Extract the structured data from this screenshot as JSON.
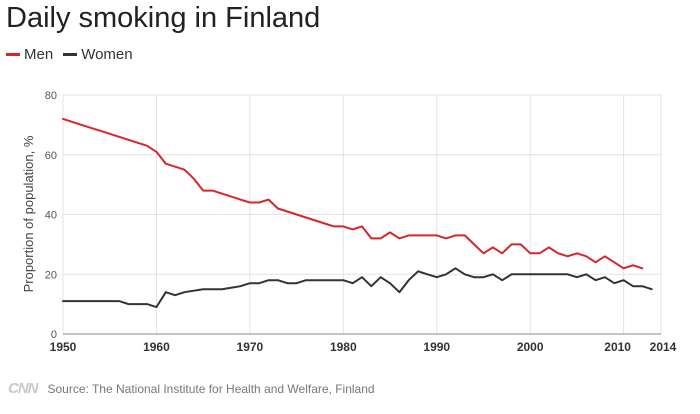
{
  "colors": {
    "men": "#d7262b",
    "women": "#333333",
    "grid": "#e3e3e3",
    "axis": "#888888"
  },
  "chart_data": {
    "type": "line",
    "title": "Daily smoking in Finland",
    "ylabel": "Proportion of population, %",
    "xlabel": "",
    "xlim": [
      1950,
      2014
    ],
    "ylim": [
      0,
      80
    ],
    "x_ticks": [
      "1950",
      "1960",
      "1970",
      "1980",
      "1990",
      "2000",
      "2010",
      "2014"
    ],
    "y_ticks": [
      "0",
      "20",
      "40",
      "60",
      "80"
    ],
    "grid": true,
    "legend": "top-left",
    "x": [
      1950,
      1951,
      1952,
      1953,
      1954,
      1955,
      1956,
      1957,
      1958,
      1959,
      1960,
      1961,
      1962,
      1963,
      1964,
      1965,
      1966,
      1967,
      1968,
      1969,
      1970,
      1971,
      1972,
      1973,
      1974,
      1975,
      1976,
      1977,
      1978,
      1979,
      1980,
      1981,
      1982,
      1983,
      1984,
      1985,
      1986,
      1987,
      1988,
      1989,
      1990,
      1991,
      1992,
      1993,
      1994,
      1995,
      1996,
      1997,
      1998,
      1999,
      2000,
      2001,
      2002,
      2003,
      2004,
      2005,
      2006,
      2007,
      2008,
      2009,
      2010,
      2011,
      2012,
      2013,
      2014
    ],
    "series": [
      {
        "name": "Men",
        "color": "#d7262b",
        "values": [
          72,
          71,
          70,
          69,
          68,
          67,
          66,
          65,
          64,
          63,
          61,
          57,
          56,
          55,
          52,
          48,
          48,
          47,
          46,
          45,
          44,
          44,
          45,
          42,
          41,
          40,
          39,
          38,
          37,
          36,
          36,
          35,
          36,
          32,
          32,
          34,
          32,
          33,
          33,
          33,
          33,
          32,
          33,
          33,
          30,
          27,
          29,
          27,
          30,
          30,
          27,
          27,
          29,
          27,
          26,
          27,
          26,
          24,
          26,
          24,
          22,
          23,
          22,
          null,
          null
        ]
      },
      {
        "name": "Women",
        "color": "#333333",
        "values": [
          11,
          11,
          11,
          11,
          11,
          11,
          11,
          10,
          10,
          10,
          9,
          14,
          13,
          14,
          14.5,
          15,
          15,
          15,
          15.5,
          16,
          17,
          17,
          18,
          18,
          17,
          17,
          18,
          18,
          18,
          18,
          18,
          17,
          19,
          16,
          19,
          17,
          14,
          18,
          21,
          20,
          19,
          20,
          22,
          20,
          19,
          19,
          20,
          18,
          20,
          20,
          20,
          20,
          20,
          20,
          20,
          19,
          20,
          18,
          19,
          17,
          18,
          16,
          16,
          15,
          null
        ]
      }
    ]
  },
  "footer": {
    "logo": "CNN",
    "source": "Source: The National Institute for Health and Welfare, Finland"
  }
}
